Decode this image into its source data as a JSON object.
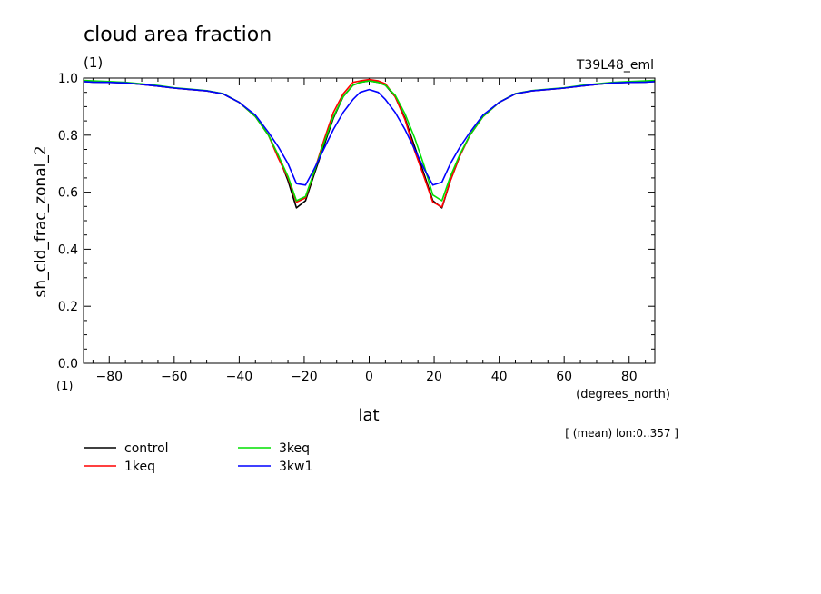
{
  "chart_data": {
    "type": "line",
    "title": "cloud area fraction",
    "units_label": "(1)",
    "experiment_label": "T39L48_eml",
    "ylabel": "sh_cld_frac_zonal_2",
    "xlabel": "lat",
    "xunits": "(degrees_north)",
    "yunits": "(1)",
    "mean_note": "[ (mean) lon:0..357 ]",
    "xlim": [
      -87.9,
      87.9
    ],
    "ylim": [
      0.0,
      1.0
    ],
    "xticks": [
      -80,
      -60,
      -40,
      -20,
      0,
      20,
      40,
      60,
      80
    ],
    "xtick_labels": [
      "−80",
      "−60",
      "−40",
      "−20",
      "0",
      "20",
      "40",
      "60",
      "80"
    ],
    "yticks": [
      0.0,
      0.2,
      0.4,
      0.6,
      0.8,
      1.0
    ],
    "ytick_labels": [
      "0.0",
      "0.2",
      "0.4",
      "0.6",
      "0.8",
      "1.0"
    ],
    "x": [
      -87.9,
      -85,
      -80,
      -75,
      -70,
      -65,
      -60,
      -55,
      -50,
      -45,
      -40,
      -35,
      -31,
      -28,
      -25,
      -22.4,
      -19.6,
      -17,
      -14,
      -11,
      -8,
      -5,
      -2.8,
      0,
      2.8,
      5,
      8,
      11,
      14,
      17,
      19.6,
      22.4,
      25,
      28,
      31,
      35,
      40,
      45,
      50,
      55,
      60,
      65,
      70,
      75,
      80,
      85,
      87.9
    ],
    "series": [
      {
        "name": "control",
        "color": "#000000",
        "values": [
          0.988,
          0.986,
          0.985,
          0.983,
          0.978,
          0.972,
          0.965,
          0.96,
          0.955,
          0.945,
          0.915,
          0.865,
          0.8,
          0.73,
          0.64,
          0.545,
          0.57,
          0.66,
          0.76,
          0.86,
          0.935,
          0.975,
          0.985,
          0.99,
          0.985,
          0.975,
          0.935,
          0.86,
          0.76,
          0.66,
          0.57,
          0.545,
          0.64,
          0.73,
          0.8,
          0.865,
          0.915,
          0.945,
          0.955,
          0.96,
          0.965,
          0.972,
          0.978,
          0.983,
          0.985,
          0.986,
          0.988
        ]
      },
      {
        "name": "1keq",
        "color": "#ff0000",
        "values": [
          0.99,
          0.988,
          0.986,
          0.984,
          0.978,
          0.972,
          0.965,
          0.96,
          0.955,
          0.945,
          0.915,
          0.865,
          0.8,
          0.72,
          0.65,
          0.565,
          0.58,
          0.67,
          0.78,
          0.88,
          0.945,
          0.985,
          0.99,
          0.995,
          0.99,
          0.98,
          0.935,
          0.855,
          0.745,
          0.65,
          0.565,
          0.548,
          0.64,
          0.73,
          0.8,
          0.865,
          0.915,
          0.945,
          0.955,
          0.96,
          0.965,
          0.972,
          0.978,
          0.984,
          0.986,
          0.988,
          0.99
        ]
      },
      {
        "name": "3keq",
        "color": "#00e000",
        "values": [
          0.992,
          0.99,
          0.988,
          0.985,
          0.98,
          0.974,
          0.966,
          0.961,
          0.956,
          0.946,
          0.915,
          0.865,
          0.8,
          0.73,
          0.655,
          0.57,
          0.585,
          0.67,
          0.77,
          0.865,
          0.935,
          0.975,
          0.985,
          0.99,
          0.985,
          0.975,
          0.94,
          0.875,
          0.79,
          0.69,
          0.59,
          0.57,
          0.655,
          0.735,
          0.8,
          0.865,
          0.915,
          0.946,
          0.956,
          0.961,
          0.966,
          0.974,
          0.98,
          0.985,
          0.988,
          0.99,
          0.992
        ]
      },
      {
        "name": "3kw1",
        "color": "#0000ff",
        "values": [
          0.988,
          0.986,
          0.985,
          0.983,
          0.978,
          0.972,
          0.965,
          0.96,
          0.955,
          0.945,
          0.915,
          0.87,
          0.81,
          0.76,
          0.7,
          0.63,
          0.625,
          0.68,
          0.75,
          0.82,
          0.88,
          0.925,
          0.95,
          0.96,
          0.95,
          0.925,
          0.88,
          0.82,
          0.75,
          0.68,
          0.625,
          0.635,
          0.7,
          0.76,
          0.81,
          0.87,
          0.915,
          0.945,
          0.955,
          0.96,
          0.965,
          0.972,
          0.978,
          0.983,
          0.985,
          0.986,
          0.988
        ]
      }
    ],
    "legend_placement": "bottom-left",
    "grid": false
  }
}
